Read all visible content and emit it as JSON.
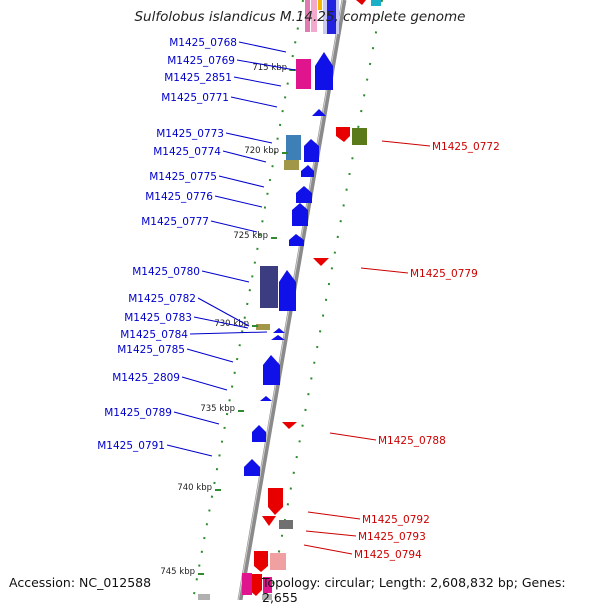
{
  "title": "Sulfolobus islandicus M.14.25, complete genome",
  "footer": {
    "accession": "Accession: NC_012588",
    "topology": "Topology: circular; Length: 2,608,832 bp; Genes: 2,655"
  },
  "colors": {
    "forward_label": "#0000cc",
    "reverse_label": "#cc0000",
    "backbone": "#888888",
    "tick": "#2e8b2e"
  },
  "ticks": [
    {
      "label": "715 kbp",
      "kbp": 715
    },
    {
      "label": "720 kbp",
      "kbp": 720
    },
    {
      "label": "725 kbp",
      "kbp": 725
    },
    {
      "label": "730 kbp",
      "kbp": 730
    },
    {
      "label": "735 kbp",
      "kbp": 735
    },
    {
      "label": "740 kbp",
      "kbp": 740
    },
    {
      "label": "745 kbp",
      "kbp": 745
    }
  ],
  "forward_genes": [
    "M1425_0768",
    "M1425_0769",
    "M1425_2851",
    "M1425_0771",
    "M1425_0773",
    "M1425_0774",
    "M1425_0775",
    "M1425_0776",
    "M1425_0777",
    "M1425_0780",
    "M1425_0782",
    "M1425_0783",
    "M1425_0784",
    "M1425_0785",
    "M1425_2809",
    "M1425_0789",
    "M1425_0791"
  ],
  "reverse_genes": [
    "M1425_0772",
    "M1425_0779",
    "M1425_0788",
    "M1425_0792",
    "M1425_0793",
    "M1425_0794"
  ]
}
